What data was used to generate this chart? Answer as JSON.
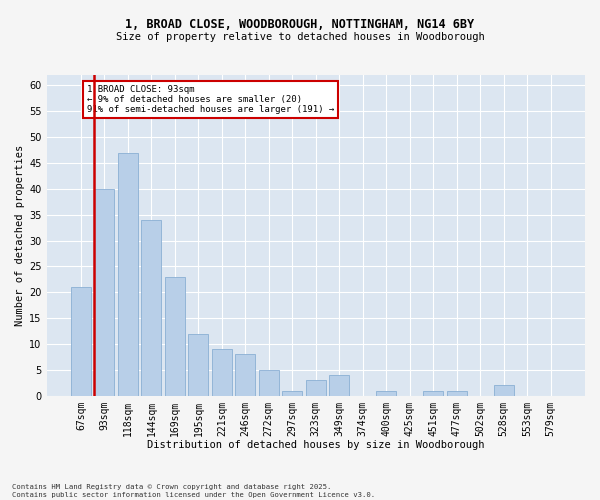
{
  "title_line1": "1, BROAD CLOSE, WOODBOROUGH, NOTTINGHAM, NG14 6BY",
  "title_line2": "Size of property relative to detached houses in Woodborough",
  "xlabel": "Distribution of detached houses by size in Woodborough",
  "ylabel": "Number of detached properties",
  "categories": [
    "67sqm",
    "93sqm",
    "118sqm",
    "144sqm",
    "169sqm",
    "195sqm",
    "221sqm",
    "246sqm",
    "272sqm",
    "297sqm",
    "323sqm",
    "349sqm",
    "374sqm",
    "400sqm",
    "425sqm",
    "451sqm",
    "477sqm",
    "502sqm",
    "528sqm",
    "553sqm",
    "579sqm"
  ],
  "values": [
    21,
    40,
    47,
    34,
    23,
    12,
    9,
    8,
    5,
    1,
    3,
    4,
    0,
    1,
    0,
    1,
    1,
    0,
    2,
    0,
    0
  ],
  "bar_color": "#b8cfe8",
  "bar_edge_color": "#8aafd4",
  "highlight_bar_index": 1,
  "highlight_color": "#cc0000",
  "ylim": [
    0,
    62
  ],
  "yticks": [
    0,
    5,
    10,
    15,
    20,
    25,
    30,
    35,
    40,
    45,
    50,
    55,
    60
  ],
  "annotation_title": "1 BROAD CLOSE: 93sqm",
  "annotation_line2": "← 9% of detached houses are smaller (20)",
  "annotation_line3": "91% of semi-detached houses are larger (191) →",
  "annotation_box_color": "#cc0000",
  "bg_color": "#dce6f1",
  "fig_bg_color": "#f5f5f5",
  "footer_line1": "Contains HM Land Registry data © Crown copyright and database right 2025.",
  "footer_line2": "Contains public sector information licensed under the Open Government Licence v3.0."
}
